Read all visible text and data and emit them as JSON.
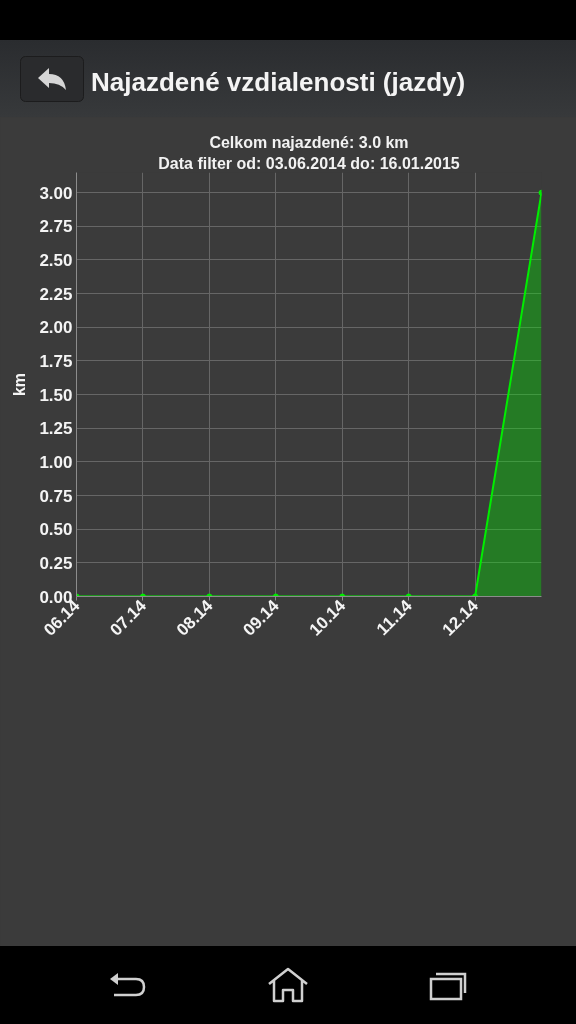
{
  "chart_data": {
    "type": "area",
    "title": "Najazdené vzdialenosti (jazdy)",
    "subtitle": "Celkom najazdené: 3.0 km",
    "annotations": [
      "Data filter od: 03.06.2014 do: 16.01.2015"
    ],
    "ylabel": "km",
    "categories": [
      "06.14",
      "07.14",
      "08.14",
      "09.14",
      "10.14",
      "11.14",
      "12.14",
      null
    ],
    "series": [
      {
        "color": "#00ee00",
        "values": [
          0,
          0,
          0,
          0,
          0,
          0,
          0,
          3.0
        ]
      }
    ],
    "ylim": [
      0,
      3.15
    ],
    "yticks": [
      {
        "value": 0,
        "label": "0.00"
      },
      0.25,
      {
        "value": 0.5,
        "label": "0.50"
      },
      0.75,
      {
        "value": 1,
        "label": "1.00"
      },
      1.25,
      {
        "value": 1.5,
        "label": "1.50"
      },
      1.75,
      {
        "value": 2,
        "label": "2.00"
      },
      2.25,
      {
        "value": 2.5,
        "label": "2.50"
      },
      2.75,
      {
        "value": 3,
        "label": "3.00"
      }
    ],
    "grid": true,
    "marker": "circle"
  }
}
